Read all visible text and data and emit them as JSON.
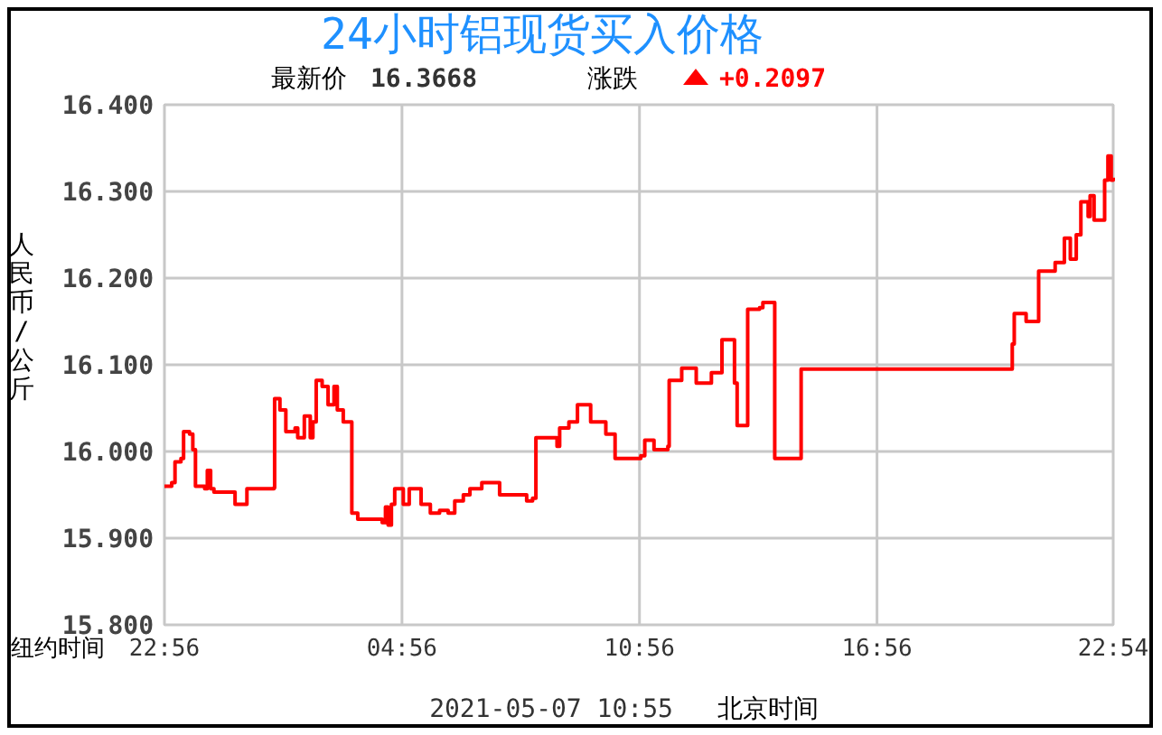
{
  "chart_data": {
    "type": "step",
    "title": "24小时铝现货买入价格",
    "xlabel": "纽约时间",
    "ylabel": "人民币/公斤",
    "annotations": [
      "最新价",
      "16.3668",
      "涨跌",
      "+0.2097",
      "2021-05-07 10:55",
      "北京时间"
    ],
    "xlim": [
      "2021-05-06T22:56",
      "2021-05-07T22:54"
    ],
    "xticks": [
      {
        "value": "2021-05-06T22:56",
        "label": "22:56"
      },
      {
        "value": "2021-05-07T04:56",
        "label": "04:56"
      },
      {
        "value": "2021-05-07T10:56",
        "label": "10:56"
      },
      {
        "value": "2021-05-07T16:56",
        "label": "16:56"
      },
      {
        "value": "2021-05-07T22:54",
        "label": "22:54"
      }
    ],
    "ylim": [
      15.8,
      16.4
    ],
    "yticks": [
      {
        "value": 15.8,
        "label": "15.800"
      },
      {
        "value": 15.9,
        "label": "15.900"
      },
      {
        "value": 16.0,
        "label": "16.000"
      },
      {
        "value": 16.1,
        "label": "16.100"
      },
      {
        "value": 16.2,
        "label": "16.200"
      },
      {
        "value": 16.3,
        "label": "16.300"
      },
      {
        "value": 16.4,
        "label": "16.400"
      }
    ],
    "grid": true,
    "series": [
      {
        "color": "#ff0000",
        "x": [
          "2021-05-06T22:56",
          "2021-05-06T23:07",
          "2021-05-06T23:12",
          "2021-05-06T23:21",
          "2021-05-06T23:25",
          "2021-05-06T23:34",
          "2021-05-06T23:39",
          "2021-05-06T23:43",
          "2021-05-06T23:57",
          "2021-05-07T00:01",
          "2021-05-07T00:06",
          "2021-05-07T00:11",
          "2021-05-07T00:38",
          "2021-05-07T00:43",
          "2021-05-07T00:57",
          "2021-05-07T01:01",
          "2021-05-07T01:42",
          "2021-05-07T01:43",
          "2021-05-07T01:51",
          "2021-05-07T02:00",
          "2021-05-07T02:14",
          "2021-05-07T02:18",
          "2021-05-07T02:28",
          "2021-05-07T02:37",
          "2021-05-07T02:41",
          "2021-05-07T02:46",
          "2021-05-07T02:55",
          "2021-05-07T03:04",
          "2021-05-07T03:13",
          "2021-05-07T03:18",
          "2021-05-07T03:27",
          "2021-05-07T03:40",
          "2021-05-07T03:49",
          "2021-05-07T04:12",
          "2021-05-07T04:26",
          "2021-05-07T04:31",
          "2021-05-07T04:35",
          "2021-05-07T04:40",
          "2021-05-07T04:45",
          "2021-05-07T04:58",
          "2021-05-07T05:07",
          "2021-05-07T05:25",
          "2021-05-07T05:39",
          "2021-05-07T05:53",
          "2021-05-07T06:06",
          "2021-05-07T06:16",
          "2021-05-07T06:29",
          "2021-05-07T06:39",
          "2021-05-07T06:57",
          "2021-05-07T07:24",
          "2021-05-07T08:05",
          "2021-05-07T08:14",
          "2021-05-07T08:19",
          "2021-05-07T08:51",
          "2021-05-07T08:55",
          "2021-05-07T09:09",
          "2021-05-07T09:22",
          "2021-05-07T09:42",
          "2021-05-07T10:05",
          "2021-05-07T10:19",
          "2021-05-07T10:58",
          "2021-05-07T11:04",
          "2021-05-07T11:18",
          "2021-05-07T11:39",
          "2021-05-07T11:41",
          "2021-05-07T12:00",
          "2021-05-07T12:22",
          "2021-05-07T12:45",
          "2021-05-07T13:01",
          "2021-05-07T13:20",
          "2021-05-07T13:24",
          "2021-05-07T13:40",
          "2021-05-07T13:58",
          "2021-05-07T14:03",
          "2021-05-07T14:21",
          "2021-05-07T15:01",
          "2021-05-07T20:21",
          "2021-05-07T20:24",
          "2021-05-07T20:42",
          "2021-05-07T21:01",
          "2021-05-07T21:26",
          "2021-05-07T21:40",
          "2021-05-07T21:49",
          "2021-05-07T21:58",
          "2021-05-07T22:05",
          "2021-05-07T22:16",
          "2021-05-07T22:19",
          "2021-05-07T22:25",
          "2021-05-07T22:41",
          "2021-05-07T22:46",
          "2021-05-07T22:51",
          "2021-05-07T22:54"
        ],
        "values": [
          15.96,
          15.964,
          15.988,
          15.992,
          16.023,
          16.02,
          16.002,
          15.96,
          15.957,
          15.978,
          15.957,
          15.953,
          15.953,
          15.939,
          15.939,
          15.957,
          15.958,
          16.061,
          16.048,
          16.023,
          16.027,
          16.016,
          16.041,
          16.016,
          16.034,
          16.082,
          16.075,
          16.054,
          16.075,
          16.048,
          16.034,
          15.929,
          15.922,
          15.922,
          15.918,
          15.936,
          15.915,
          15.939,
          15.957,
          15.939,
          15.957,
          15.939,
          15.929,
          15.932,
          15.929,
          15.943,
          15.95,
          15.957,
          15.964,
          15.95,
          15.943,
          15.946,
          16.016,
          16.006,
          16.027,
          16.034,
          16.054,
          16.034,
          16.02,
          15.992,
          15.995,
          16.013,
          16.002,
          16.006,
          16.082,
          16.096,
          16.079,
          16.091,
          16.129,
          16.079,
          16.03,
          16.164,
          16.166,
          16.172,
          15.992,
          16.095,
          16.124,
          16.159,
          16.15,
          16.208,
          16.218,
          16.246,
          16.222,
          16.25,
          16.288,
          16.271,
          16.295,
          16.267,
          16.313,
          16.341,
          16.313,
          16.316
        ]
      }
    ]
  }
}
